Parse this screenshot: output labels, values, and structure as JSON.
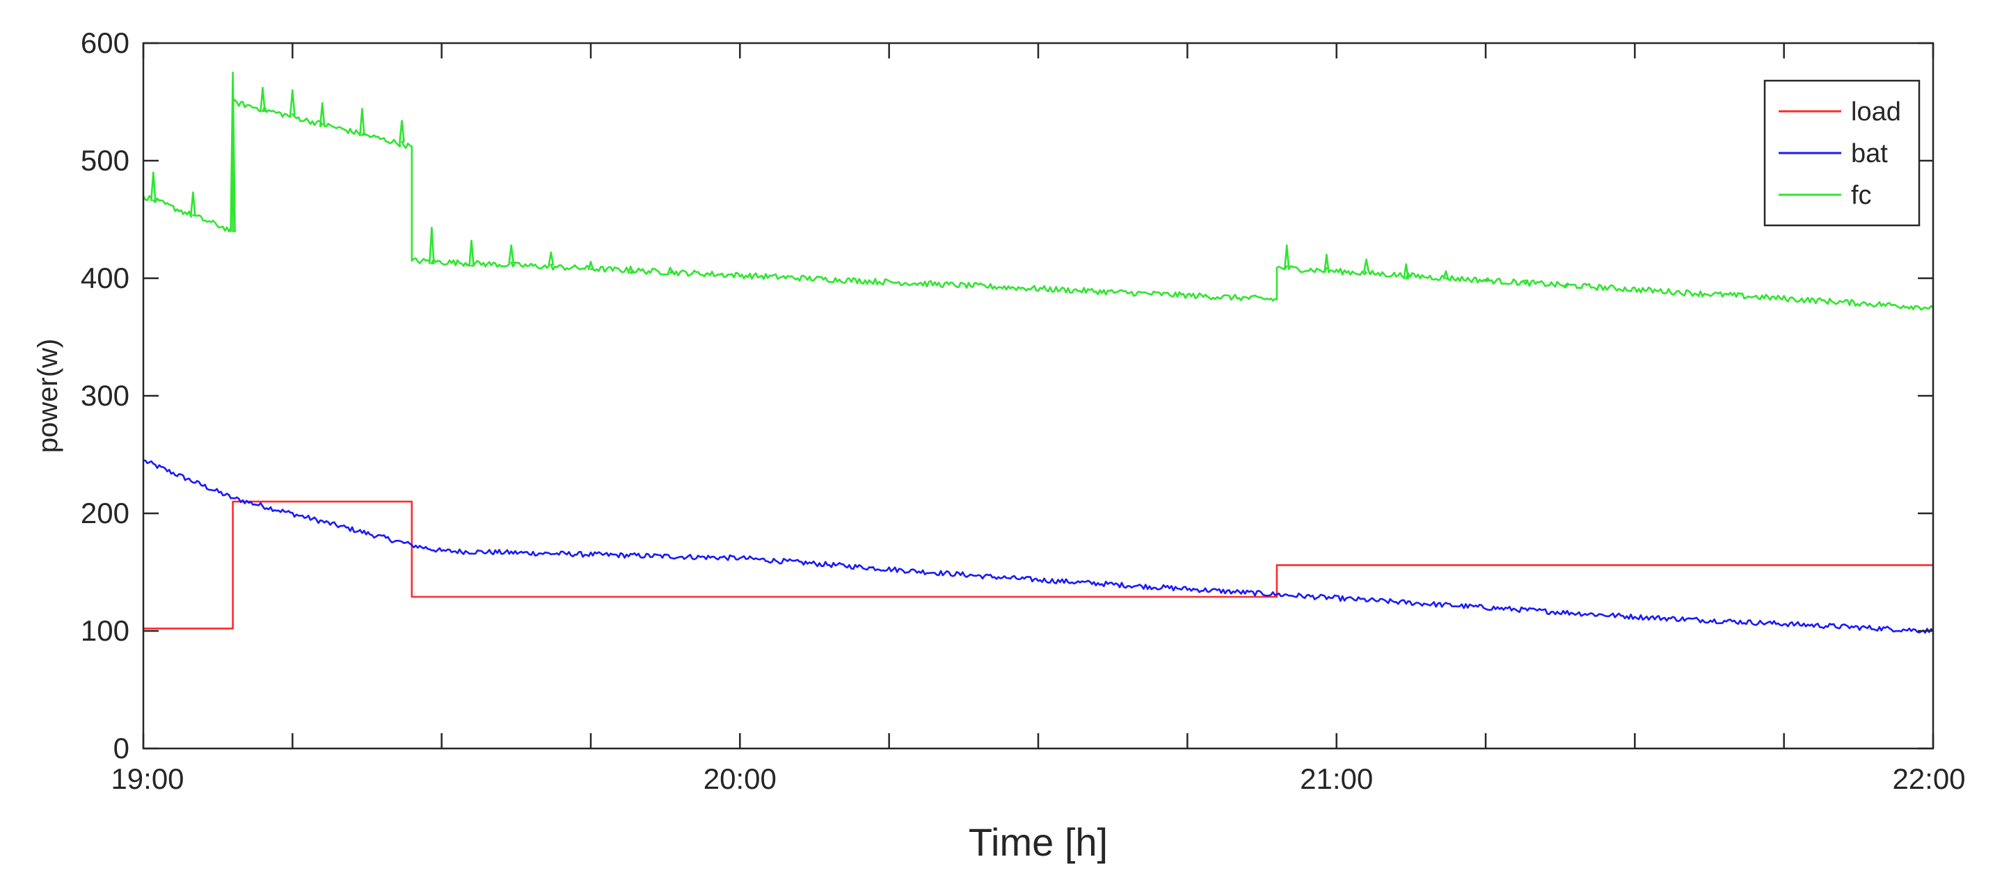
{
  "chart_data": {
    "type": "line",
    "xlabel": "Time [h]",
    "ylabel": "power(w)",
    "x_unit": "time of day (hours, 19:00-22:00)",
    "xlim": [
      "19:00",
      "22:00"
    ],
    "ylim": [
      0,
      600
    ],
    "x_tick_labels": [
      "19:00",
      "20:00",
      "21:00",
      "22:00"
    ],
    "x_minor_ticks": [
      "19:15",
      "19:30",
      "19:45",
      "20:15",
      "20:30",
      "20:45",
      "21:15",
      "21:30",
      "21:45"
    ],
    "y_ticks": [
      0,
      100,
      200,
      300,
      400,
      500,
      600
    ],
    "grid": false,
    "legend_position": "top-right",
    "series": [
      {
        "name": "load",
        "color": "#ff2a2a",
        "points": [
          [
            "19:00",
            102
          ],
          [
            "19:09",
            102
          ],
          [
            "19:09",
            210
          ],
          [
            "19:27",
            210
          ],
          [
            "19:27",
            129
          ],
          [
            "20:54",
            129
          ],
          [
            "20:54",
            156
          ],
          [
            "22:00",
            156
          ]
        ]
      },
      {
        "name": "bat",
        "color": "#1a1aff",
        "points": [
          [
            "19:00",
            245
          ],
          [
            "19:09",
            213
          ],
          [
            "19:27",
            173
          ],
          [
            "19:30",
            168
          ],
          [
            "20:00",
            162
          ],
          [
            "20:27",
            145
          ],
          [
            "20:54",
            131
          ],
          [
            "21:30",
            112
          ],
          [
            "22:00",
            100
          ]
        ]
      },
      {
        "name": "fc",
        "color": "#2ee62e",
        "points": [
          [
            "19:00",
            470
          ],
          [
            "19:09",
            440
          ],
          [
            "19:09",
            550
          ],
          [
            "19:27",
            512
          ],
          [
            "19:27",
            415
          ],
          [
            "20:54",
            382
          ],
          [
            "20:54",
            409
          ],
          [
            "22:00",
            375
          ]
        ],
        "spikes": [
          [
            "19:01",
            490
          ],
          [
            "19:05",
            473
          ],
          [
            "19:09",
            575
          ],
          [
            "19:12",
            562
          ],
          [
            "19:15",
            560
          ],
          [
            "19:18",
            549
          ],
          [
            "19:22",
            544
          ],
          [
            "19:26",
            534
          ],
          [
            "19:29",
            443
          ],
          [
            "19:33",
            432
          ],
          [
            "19:37",
            428
          ],
          [
            "19:41",
            422
          ],
          [
            "19:45",
            414
          ],
          [
            "19:49",
            410
          ],
          [
            "19:53",
            409
          ],
          [
            "20:55",
            428
          ],
          [
            "20:59",
            420
          ],
          [
            "21:03",
            416
          ],
          [
            "21:07",
            412
          ],
          [
            "21:11",
            406
          ],
          [
            "21:15",
            399
          ],
          [
            "21:19",
            395
          ],
          [
            "21:23",
            392
          ]
        ]
      }
    ]
  }
}
